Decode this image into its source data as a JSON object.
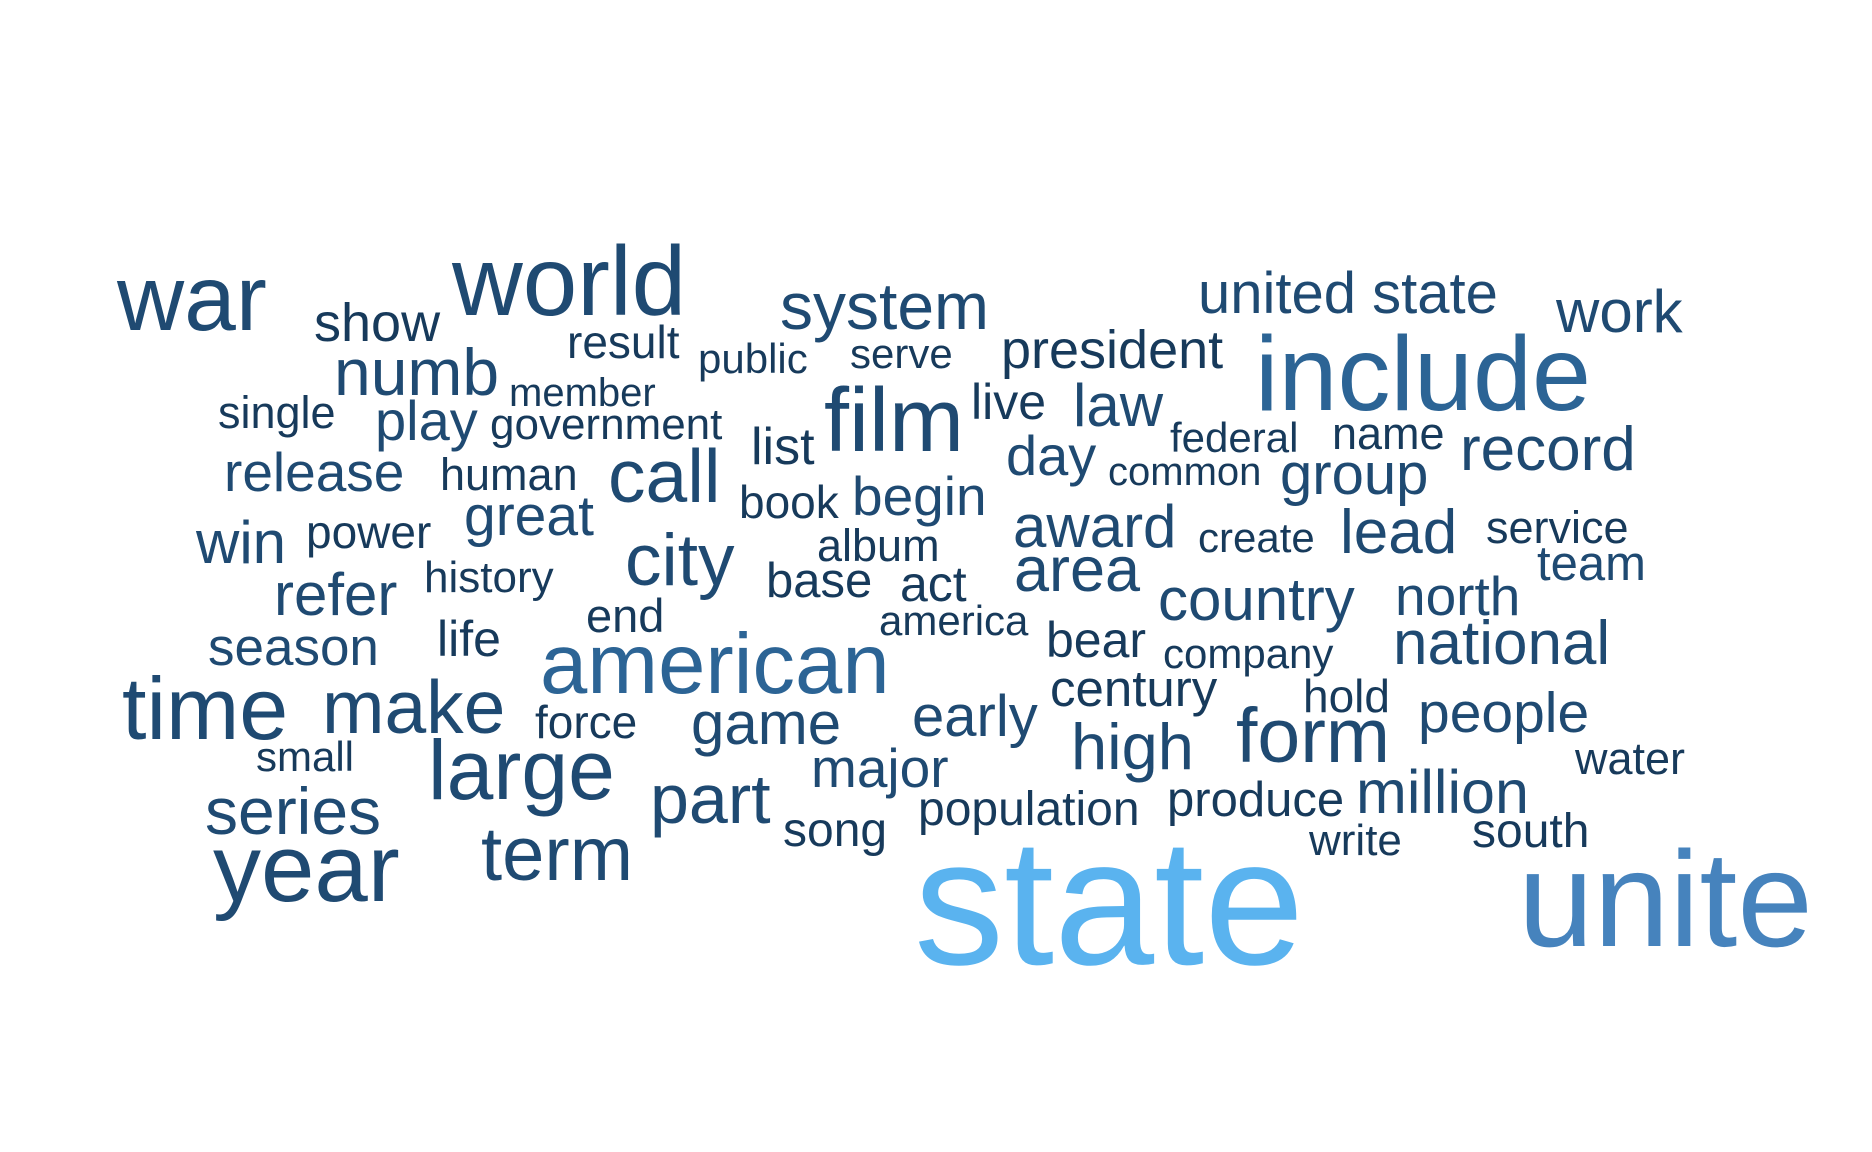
{
  "colors": {
    "dark": "#173a5b",
    "mid_dark": "#1f4a72",
    "mid": "#2c6495",
    "light": "#4683bd",
    "brightest": "#5ab3ef"
  },
  "words": [
    {
      "text": "war",
      "color": "mid_dark"
    },
    {
      "text": "show",
      "color": "dark"
    },
    {
      "text": "world",
      "color": "mid_dark"
    },
    {
      "text": "result",
      "color": "dark"
    },
    {
      "text": "public",
      "color": "dark"
    },
    {
      "text": "system",
      "color": "mid_dark"
    },
    {
      "text": "serve",
      "color": "dark"
    },
    {
      "text": "president",
      "color": "dark"
    },
    {
      "text": "united state",
      "color": "mid_dark"
    },
    {
      "text": "work",
      "color": "mid_dark"
    },
    {
      "text": "include",
      "color": "mid"
    },
    {
      "text": "numb",
      "color": "mid_dark"
    },
    {
      "text": "member",
      "color": "dark"
    },
    {
      "text": "single",
      "color": "dark"
    },
    {
      "text": "play",
      "color": "mid_dark"
    },
    {
      "text": "government",
      "color": "dark"
    },
    {
      "text": "film",
      "color": "mid_dark"
    },
    {
      "text": "live",
      "color": "dark"
    },
    {
      "text": "law",
      "color": "mid_dark"
    },
    {
      "text": "federal",
      "color": "dark"
    },
    {
      "text": "name",
      "color": "dark"
    },
    {
      "text": "record",
      "color": "mid_dark"
    },
    {
      "text": "list",
      "color": "dark"
    },
    {
      "text": "day",
      "color": "mid_dark"
    },
    {
      "text": "common",
      "color": "dark"
    },
    {
      "text": "group",
      "color": "mid_dark"
    },
    {
      "text": "release",
      "color": "mid_dark"
    },
    {
      "text": "human",
      "color": "dark"
    },
    {
      "text": "call",
      "color": "mid_dark"
    },
    {
      "text": "book",
      "color": "dark"
    },
    {
      "text": "begin",
      "color": "mid_dark"
    },
    {
      "text": "great",
      "color": "mid_dark"
    },
    {
      "text": "win",
      "color": "mid_dark"
    },
    {
      "text": "power",
      "color": "dark"
    },
    {
      "text": "award",
      "color": "mid_dark"
    },
    {
      "text": "create",
      "color": "dark"
    },
    {
      "text": "lead",
      "color": "mid_dark"
    },
    {
      "text": "service",
      "color": "dark"
    },
    {
      "text": "album",
      "color": "dark"
    },
    {
      "text": "city",
      "color": "mid_dark"
    },
    {
      "text": "area",
      "color": "mid_dark"
    },
    {
      "text": "team",
      "color": "mid_dark"
    },
    {
      "text": "history",
      "color": "dark"
    },
    {
      "text": "base",
      "color": "dark"
    },
    {
      "text": "act",
      "color": "dark"
    },
    {
      "text": "refer",
      "color": "mid_dark"
    },
    {
      "text": "country",
      "color": "mid_dark"
    },
    {
      "text": "north",
      "color": "mid_dark"
    },
    {
      "text": "end",
      "color": "dark"
    },
    {
      "text": "america",
      "color": "dark"
    },
    {
      "text": "season",
      "color": "mid_dark"
    },
    {
      "text": "life",
      "color": "dark"
    },
    {
      "text": "bear",
      "color": "dark"
    },
    {
      "text": "company",
      "color": "dark"
    },
    {
      "text": "national",
      "color": "mid_dark"
    },
    {
      "text": "american",
      "color": "mid"
    },
    {
      "text": "century",
      "color": "dark"
    },
    {
      "text": "hold",
      "color": "dark"
    },
    {
      "text": "time",
      "color": "mid_dark"
    },
    {
      "text": "make",
      "color": "mid_dark"
    },
    {
      "text": "force",
      "color": "dark"
    },
    {
      "text": "game",
      "color": "mid_dark"
    },
    {
      "text": "early",
      "color": "mid_dark"
    },
    {
      "text": "people",
      "color": "mid_dark"
    },
    {
      "text": "form",
      "color": "mid_dark"
    },
    {
      "text": "small",
      "color": "dark"
    },
    {
      "text": "high",
      "color": "mid_dark"
    },
    {
      "text": "water",
      "color": "dark"
    },
    {
      "text": "large",
      "color": "mid_dark"
    },
    {
      "text": "major",
      "color": "mid_dark"
    },
    {
      "text": "series",
      "color": "mid_dark"
    },
    {
      "text": "part",
      "color": "mid_dark"
    },
    {
      "text": "million",
      "color": "mid_dark"
    },
    {
      "text": "population",
      "color": "dark"
    },
    {
      "text": "produce",
      "color": "dark"
    },
    {
      "text": "song",
      "color": "dark"
    },
    {
      "text": "south",
      "color": "dark"
    },
    {
      "text": "write",
      "color": "dark"
    },
    {
      "text": "year",
      "color": "mid_dark"
    },
    {
      "text": "term",
      "color": "mid_dark"
    },
    {
      "text": "state",
      "color": "brightest"
    },
    {
      "text": "unite",
      "color": "light"
    }
  ]
}
